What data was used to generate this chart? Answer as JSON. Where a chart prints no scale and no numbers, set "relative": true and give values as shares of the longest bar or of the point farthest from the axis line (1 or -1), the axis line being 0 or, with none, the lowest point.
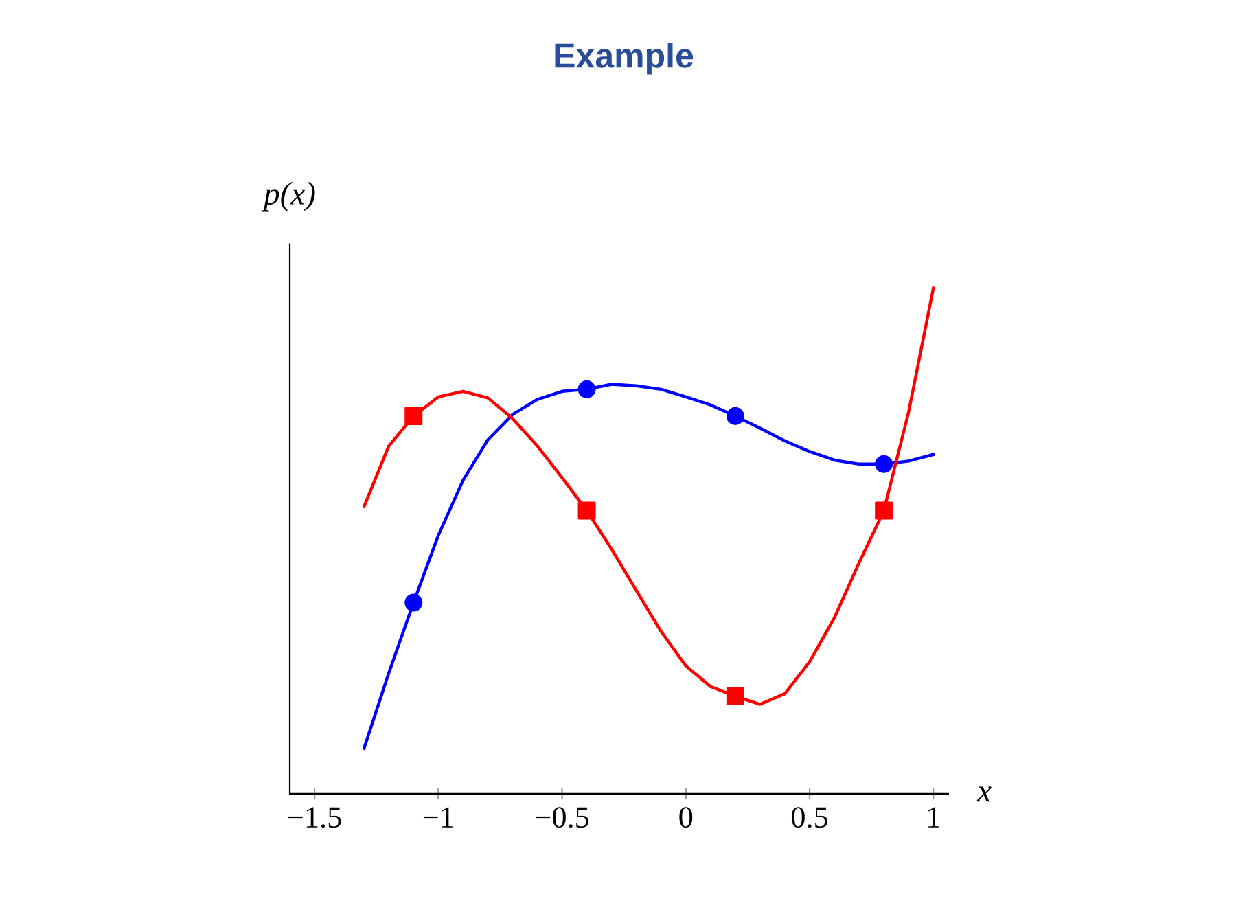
{
  "chart_data": {
    "type": "line",
    "title": "Example",
    "xlabel": "x",
    "ylabel": "p(x)",
    "relative": true,
    "xlim": [
      -1.6,
      1.06
    ],
    "xticks": [
      {
        "value": -1.5,
        "label": "−1.5"
      },
      {
        "value": -1,
        "label": "−1"
      },
      {
        "value": -0.5,
        "label": "−0.5"
      },
      0,
      0.5,
      1
    ],
    "grid": false,
    "legend": false,
    "tick_labels": "x",
    "series": [
      {
        "color": "#0000ff",
        "x": [
          -1.3,
          -1.2,
          -1.1,
          -1.0,
          -0.9,
          -0.8,
          -0.7,
          -0.6,
          -0.5,
          -0.4,
          -0.3,
          -0.2,
          -0.1,
          0,
          0.1,
          0.2,
          0.3,
          0.4,
          0.5,
          0.6,
          0.7,
          0.8,
          0.9,
          1.0
        ],
        "values": [
          0.09,
          0.239,
          0.378,
          0.511,
          0.62,
          0.7,
          0.75,
          0.78,
          0.796,
          0.8,
          0.81,
          0.807,
          0.8,
          0.785,
          0.769,
          0.747,
          0.723,
          0.698,
          0.677,
          0.66,
          0.652,
          0.652,
          0.658,
          0.671
        ]
      },
      {
        "color": "#ff0000",
        "x": [
          -1.3,
          -1.2,
          -1.1,
          -1.0,
          -0.9,
          -0.8,
          -0.7,
          -0.6,
          -0.5,
          -0.4,
          -0.3,
          -0.2,
          -0.1,
          0,
          0.1,
          0.2,
          0.3,
          0.4,
          0.5,
          0.6,
          0.7,
          0.8,
          0.9,
          1.0
        ],
        "values": [
          0.568,
          0.688,
          0.747,
          0.785,
          0.796,
          0.783,
          0.742,
          0.688,
          0.625,
          0.56,
          0.484,
          0.402,
          0.321,
          0.253,
          0.212,
          0.193,
          0.177,
          0.198,
          0.261,
          0.348,
          0.457,
          0.56,
          0.755,
          1.0
        ]
      },
      {
        "type": "scatter",
        "color": "#0000ff",
        "marker": "circle",
        "x": [
          -1.1,
          -0.4,
          0.2,
          0.8
        ],
        "values": [
          0.378,
          0.8,
          0.747,
          0.652
        ]
      },
      {
        "type": "scatter",
        "color": "#ff0000",
        "marker": "square",
        "x": [
          -1.1,
          -0.4,
          0.2,
          0.8
        ],
        "values": [
          0.747,
          0.56,
          0.193,
          0.56
        ]
      }
    ]
  }
}
